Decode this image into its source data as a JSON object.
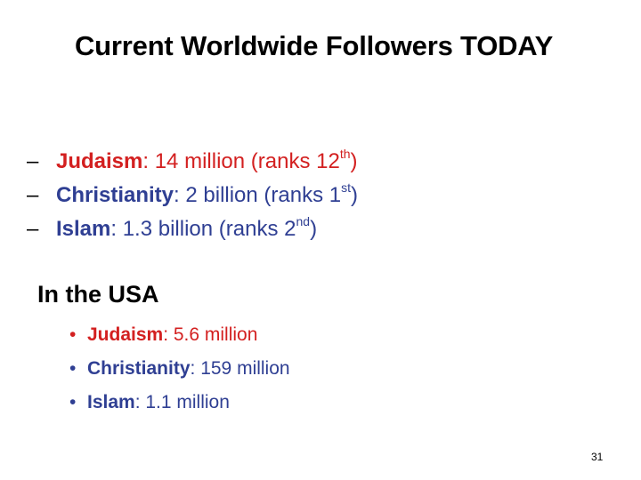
{
  "slide": {
    "title": "Current Worldwide Followers TODAY",
    "worldwide": [
      {
        "dash": "–",
        "name": "Judaism",
        "text": ": 14 million (ranks 12",
        "sup": "th",
        "tail": ")",
        "color": "#d32020"
      },
      {
        "dash": "–",
        "name": "Christianity",
        "text": ": 2 billion (ranks 1",
        "sup": "st",
        "tail": ")",
        "color": "#2f3f93"
      },
      {
        "dash": "–",
        "name": "Islam",
        "text": ": 1.3 billion (ranks 2",
        "sup": "nd",
        "tail": ")",
        "color": "#2f3f93"
      }
    ],
    "usa_heading": "In the USA",
    "usa": [
      {
        "bullet": "•",
        "name": "Judaism",
        "text": ": 5.6 million",
        "color": "#d32020"
      },
      {
        "bullet": "•",
        "name": "Christianity",
        "text": ": 159 million",
        "color": "#2f3f93"
      },
      {
        "bullet": "•",
        "name": "Islam",
        "text": ": 1.1 million",
        "color": "#2f3f93"
      }
    ],
    "page_number": "31"
  }
}
